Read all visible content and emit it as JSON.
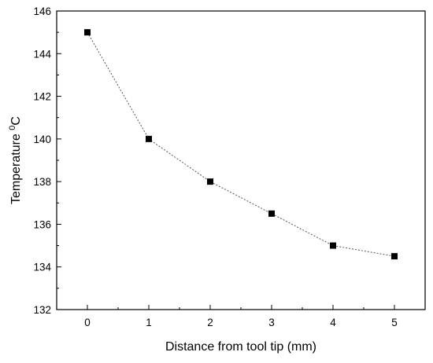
{
  "chart_data": {
    "type": "line",
    "xlabel": "Distance from tool tip (mm)",
    "ylabel_main": "Temperature ",
    "ylabel_sup": "0",
    "ylabel_unit": "C",
    "x": [
      0,
      1,
      2,
      3,
      4,
      5
    ],
    "series": [
      {
        "values": [
          145,
          140,
          138,
          136.5,
          135,
          134.5
        ]
      }
    ],
    "xlim": [
      -0.5,
      5.5
    ],
    "ylim": [
      132,
      146
    ],
    "xticks": [
      0,
      1,
      2,
      3,
      4,
      5
    ],
    "yticks": [
      132,
      134,
      136,
      138,
      140,
      142,
      144,
      146
    ],
    "marker": "square",
    "line_style": "dotted",
    "grid": false,
    "colors": {
      "line": "#555555",
      "marker": "#000000",
      "axis": "#000000"
    }
  }
}
